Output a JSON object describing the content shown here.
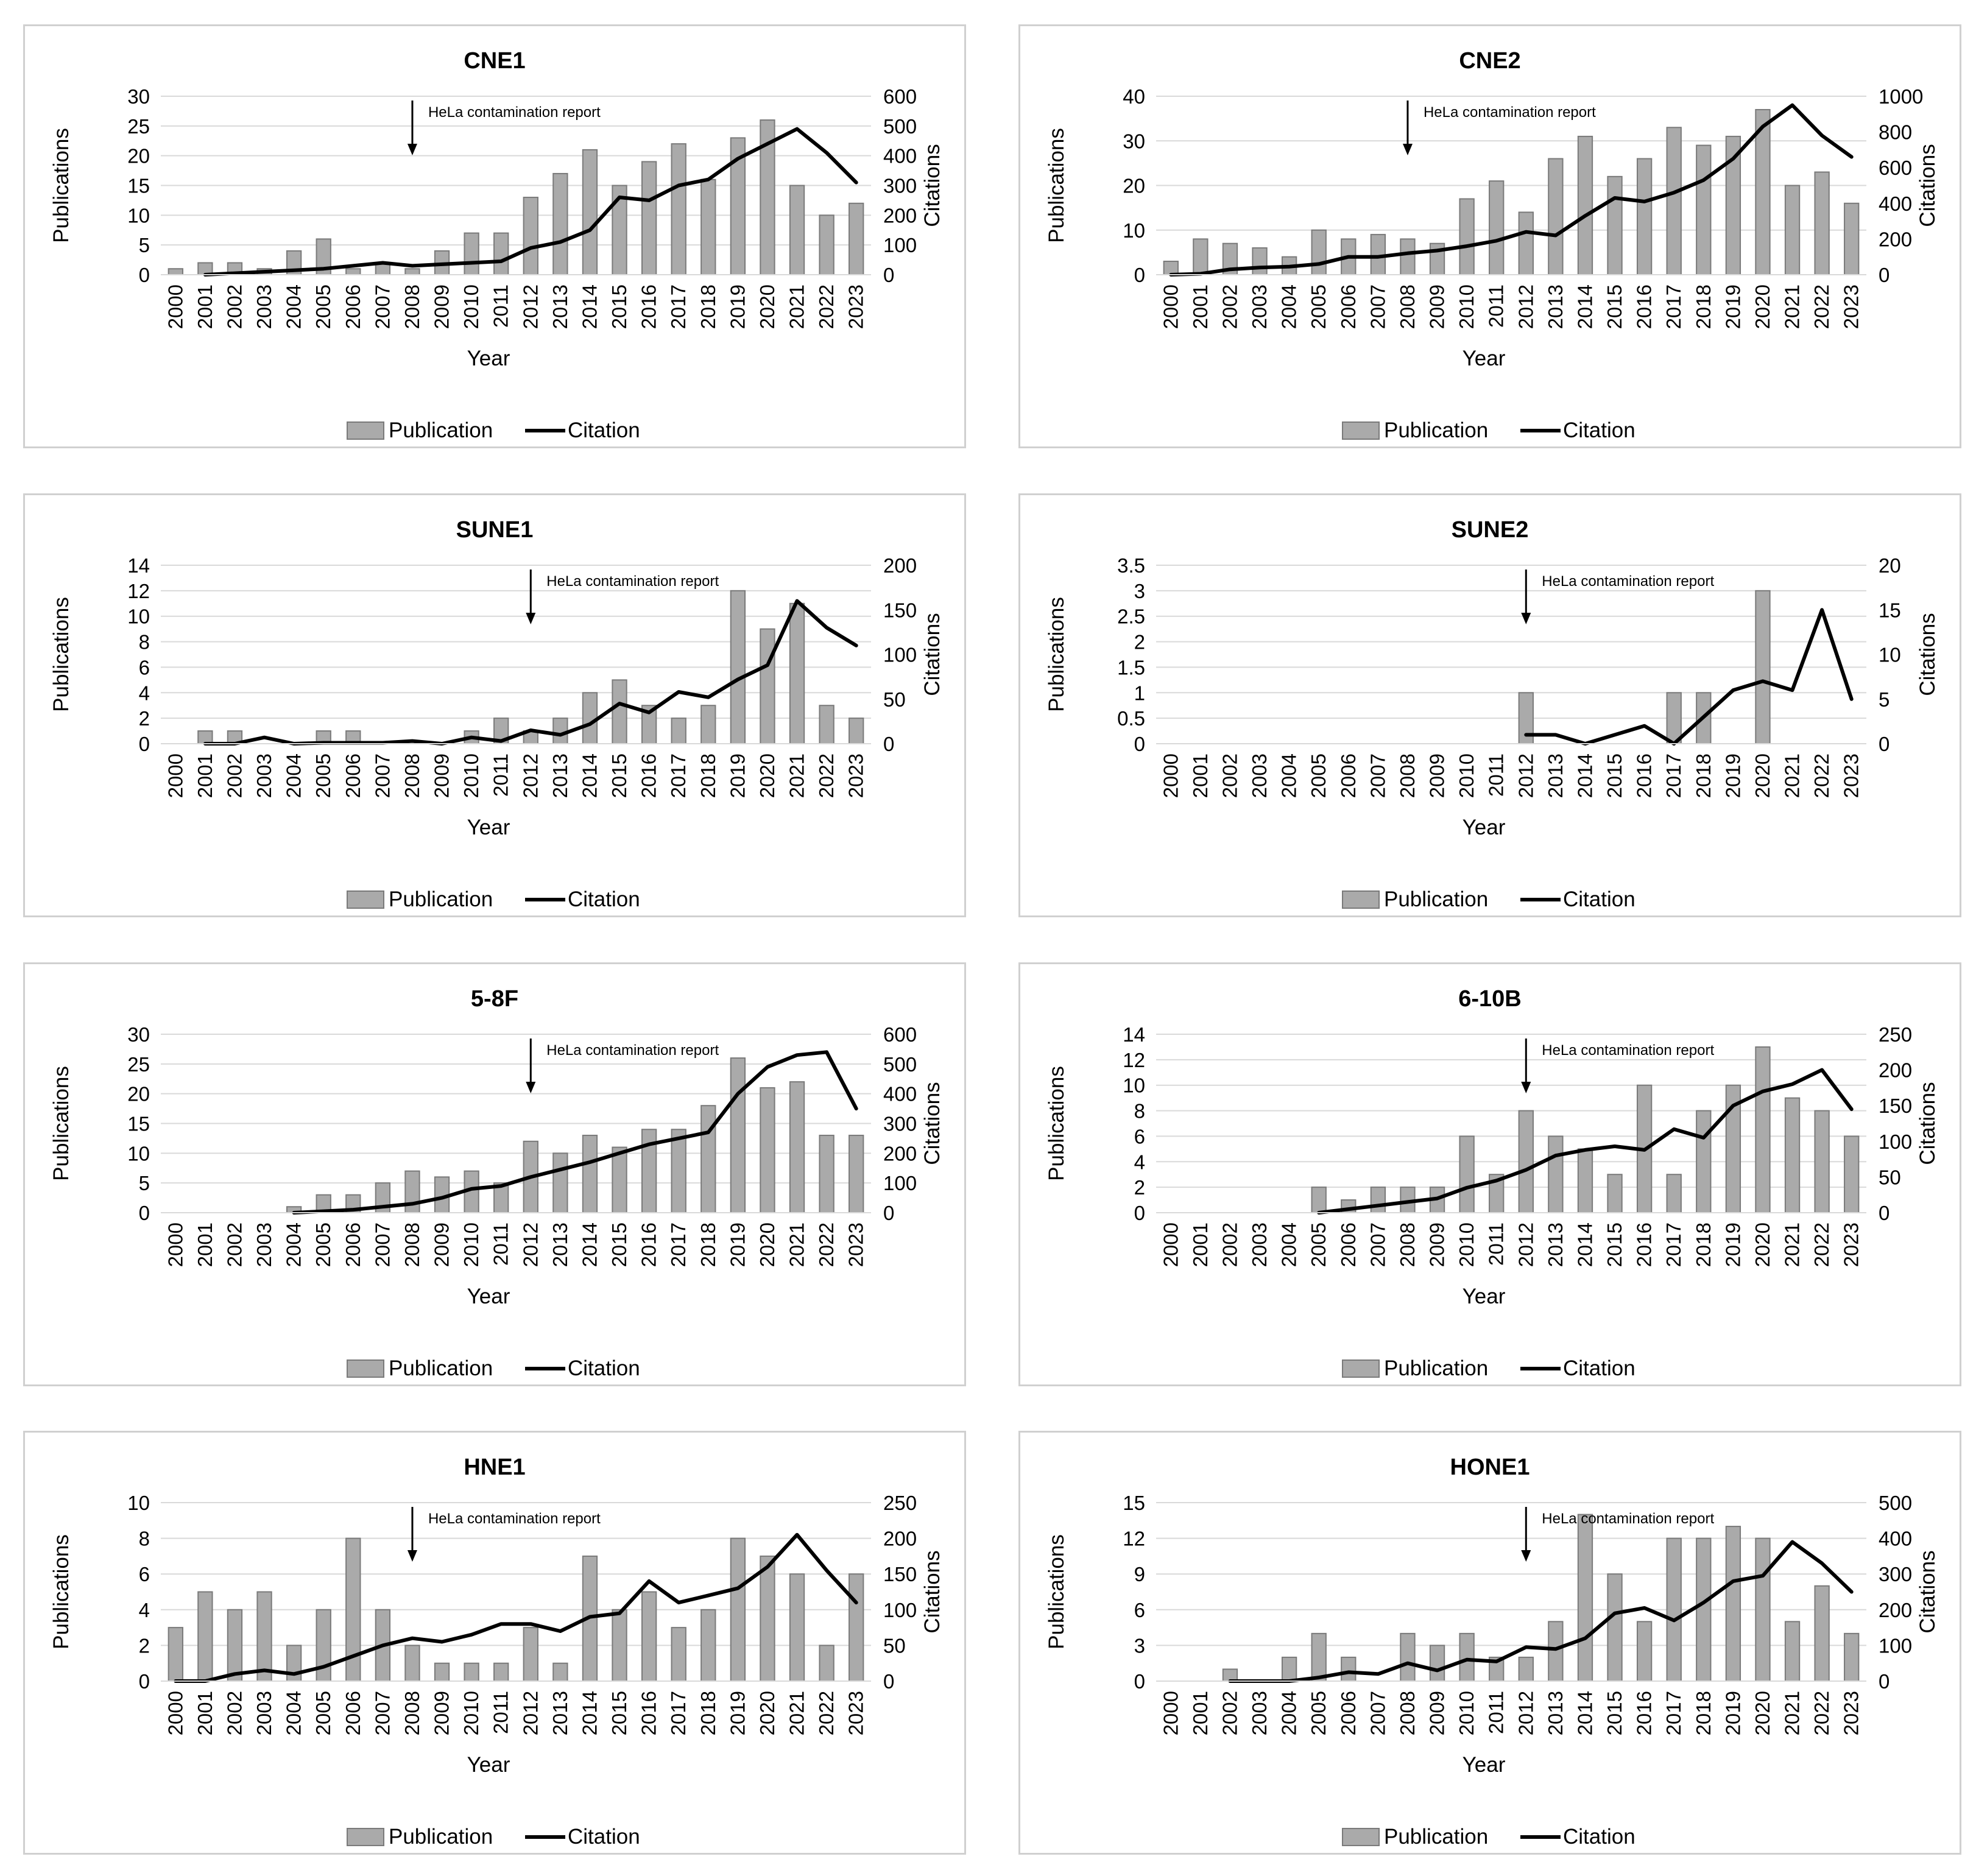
{
  "figure": {
    "x_axis_label": "Year",
    "left_axis_label": "Publications",
    "right_axis_label": "Citations",
    "annotation": "HeLa contamination report",
    "legend": {
      "bar": "Publication",
      "line": "Citation"
    },
    "colors": {
      "bar_fill": "#aaaaaa",
      "bar_stroke": "#7a7a7a",
      "line": "#000000",
      "grid": "#d9d9d9",
      "border": "#d0d0d0"
    }
  },
  "chart_data": [
    {
      "type": "bar+line",
      "title": "CNE1",
      "categories": [
        "2000",
        "2001",
        "2002",
        "2003",
        "2004",
        "2005",
        "2006",
        "2007",
        "2008",
        "2009",
        "2010",
        "2011",
        "2012",
        "2013",
        "2014",
        "2015",
        "2016",
        "2017",
        "2018",
        "2019",
        "2020",
        "2021",
        "2022",
        "2023"
      ],
      "series": [
        {
          "name": "Publication",
          "axis": "left",
          "values": [
            1,
            2,
            2,
            1,
            4,
            6,
            1,
            2,
            1,
            4,
            7,
            7,
            13,
            17,
            21,
            15,
            19,
            22,
            16,
            23,
            26,
            15,
            10,
            12
          ]
        },
        {
          "name": "Citation",
          "axis": "right",
          "values": [
            null,
            0,
            5,
            10,
            15,
            20,
            30,
            40,
            30,
            35,
            40,
            45,
            90,
            110,
            150,
            260,
            250,
            300,
            320,
            390,
            440,
            490,
            410,
            310
          ]
        }
      ],
      "left_ylim": [
        0,
        30
      ],
      "left_ticks": [
        "0",
        "5",
        "10",
        "15",
        "20",
        "25",
        "30"
      ],
      "right_ylim": [
        0,
        600
      ],
      "right_ticks": [
        "0",
        "100",
        "200",
        "300",
        "400",
        "500",
        "600"
      ],
      "annotation_year": "2008"
    },
    {
      "type": "bar+line",
      "title": "CNE2",
      "categories": [
        "2000",
        "2001",
        "2002",
        "2003",
        "2004",
        "2005",
        "2006",
        "2007",
        "2008",
        "2009",
        "2010",
        "2011",
        "2012",
        "2013",
        "2014",
        "2015",
        "2016",
        "2017",
        "2018",
        "2019",
        "2020",
        "2021",
        "2022",
        "2023"
      ],
      "series": [
        {
          "name": "Publication",
          "axis": "left",
          "values": [
            3,
            8,
            7,
            6,
            4,
            10,
            8,
            9,
            8,
            7,
            17,
            21,
            14,
            26,
            31,
            22,
            26,
            33,
            29,
            31,
            37,
            20,
            23,
            16
          ]
        },
        {
          "name": "Citation",
          "axis": "right",
          "values": [
            0,
            5,
            30,
            40,
            45,
            60,
            100,
            100,
            120,
            135,
            160,
            190,
            240,
            220,
            330,
            430,
            410,
            460,
            530,
            650,
            830,
            950,
            780,
            660
          ]
        }
      ],
      "left_ylim": [
        0,
        40
      ],
      "left_ticks": [
        "0",
        "10",
        "20",
        "30",
        "40"
      ],
      "right_ylim": [
        0,
        1000
      ],
      "right_ticks": [
        "0",
        "200",
        "400",
        "600",
        "800",
        "1000"
      ],
      "annotation_year": "2008"
    },
    {
      "type": "bar+line",
      "title": "SUNE1",
      "categories": [
        "2000",
        "2001",
        "2002",
        "2003",
        "2004",
        "2005",
        "2006",
        "2007",
        "2008",
        "2009",
        "2010",
        "2011",
        "2012",
        "2013",
        "2014",
        "2015",
        "2016",
        "2017",
        "2018",
        "2019",
        "2020",
        "2021",
        "2022",
        "2023"
      ],
      "series": [
        {
          "name": "Publication",
          "axis": "left",
          "values": [
            0,
            1,
            1,
            0,
            0,
            1,
            1,
            0,
            0,
            0,
            1,
            2,
            1,
            2,
            4,
            5,
            3,
            2,
            3,
            12,
            9,
            11,
            3,
            2
          ]
        },
        {
          "name": "Citation",
          "axis": "right",
          "values": [
            null,
            0,
            0,
            7,
            0,
            1,
            1,
            1,
            3,
            0,
            7,
            3,
            15,
            10,
            22,
            45,
            35,
            58,
            52,
            72,
            88,
            160,
            130,
            110
          ]
        }
      ],
      "left_ylim": [
        0,
        14
      ],
      "left_ticks": [
        "0",
        "2",
        "4",
        "6",
        "8",
        "10",
        "12",
        "14"
      ],
      "right_ylim": [
        0,
        200
      ],
      "right_ticks": [
        "0",
        "50",
        "100",
        "150",
        "200"
      ],
      "annotation_year": "2012"
    },
    {
      "type": "bar+line",
      "title": "SUNE2",
      "categories": [
        "2000",
        "2001",
        "2002",
        "2003",
        "2004",
        "2005",
        "2006",
        "2007",
        "2008",
        "2009",
        "2010",
        "2011",
        "2012",
        "2013",
        "2014",
        "2015",
        "2016",
        "2017",
        "2018",
        "2019",
        "2020",
        "2021",
        "2022",
        "2023"
      ],
      "series": [
        {
          "name": "Publication",
          "axis": "left",
          "values": [
            0,
            0,
            0,
            0,
            0,
            0,
            0,
            0,
            0,
            0,
            0,
            0,
            1,
            0,
            0,
            0,
            0,
            1,
            1,
            0,
            3,
            0,
            0,
            0
          ]
        },
        {
          "name": "Citation",
          "axis": "right",
          "values": [
            null,
            null,
            null,
            null,
            null,
            null,
            null,
            null,
            null,
            null,
            null,
            null,
            1,
            1,
            0,
            1,
            2,
            0,
            3,
            6,
            7,
            6,
            15,
            5
          ]
        }
      ],
      "left_ylim": [
        0,
        3.5
      ],
      "left_ticks": [
        "0",
        "0.5",
        "1",
        "1.5",
        "2",
        "2.5",
        "3",
        "3.5"
      ],
      "right_ylim": [
        0,
        20
      ],
      "right_ticks": [
        "0",
        "5",
        "10",
        "15",
        "20"
      ],
      "annotation_year": "2012"
    },
    {
      "type": "bar+line",
      "title": "5-8F",
      "categories": [
        "2000",
        "2001",
        "2002",
        "2003",
        "2004",
        "2005",
        "2006",
        "2007",
        "2008",
        "2009",
        "2010",
        "2011",
        "2012",
        "2013",
        "2014",
        "2015",
        "2016",
        "2017",
        "2018",
        "2019",
        "2020",
        "2021",
        "2022",
        "2023"
      ],
      "series": [
        {
          "name": "Publication",
          "axis": "left",
          "values": [
            0,
            0,
            0,
            0,
            1,
            3,
            3,
            5,
            7,
            6,
            7,
            5,
            12,
            10,
            13,
            11,
            14,
            14,
            18,
            26,
            21,
            22,
            13,
            13
          ]
        },
        {
          "name": "Citation",
          "axis": "right",
          "values": [
            null,
            null,
            null,
            null,
            0,
            5,
            10,
            20,
            30,
            50,
            80,
            90,
            120,
            145,
            170,
            200,
            230,
            250,
            270,
            400,
            490,
            530,
            540,
            350
          ]
        }
      ],
      "left_ylim": [
        0,
        30
      ],
      "left_ticks": [
        "0",
        "5",
        "10",
        "15",
        "20",
        "25",
        "30"
      ],
      "right_ylim": [
        0,
        600
      ],
      "right_ticks": [
        "0",
        "100",
        "200",
        "300",
        "400",
        "500",
        "600"
      ],
      "annotation_year": "2012"
    },
    {
      "type": "bar+line",
      "title": "6-10B",
      "categories": [
        "2000",
        "2001",
        "2002",
        "2003",
        "2004",
        "2005",
        "2006",
        "2007",
        "2008",
        "2009",
        "2010",
        "2011",
        "2012",
        "2013",
        "2014",
        "2015",
        "2016",
        "2017",
        "2018",
        "2019",
        "2020",
        "2021",
        "2022",
        "2023"
      ],
      "series": [
        {
          "name": "Publication",
          "axis": "left",
          "values": [
            0,
            0,
            0,
            0,
            0,
            2,
            1,
            2,
            2,
            2,
            6,
            3,
            8,
            6,
            5,
            3,
            10,
            3,
            8,
            10,
            13,
            9,
            8,
            6
          ]
        },
        {
          "name": "Citation",
          "axis": "right",
          "values": [
            null,
            null,
            null,
            null,
            null,
            0,
            5,
            10,
            15,
            20,
            35,
            45,
            60,
            80,
            88,
            93,
            88,
            117,
            105,
            150,
            170,
            180,
            200,
            145
          ]
        }
      ],
      "left_ylim": [
        0,
        14
      ],
      "left_ticks": [
        "0",
        "2",
        "4",
        "6",
        "8",
        "10",
        "12",
        "14"
      ],
      "right_ylim": [
        0,
        250
      ],
      "right_ticks": [
        "0",
        "50",
        "100",
        "150",
        "200",
        "250"
      ],
      "annotation_year": "2012"
    },
    {
      "type": "bar+line",
      "title": "HNE1",
      "categories": [
        "2000",
        "2001",
        "2002",
        "2003",
        "2004",
        "2005",
        "2006",
        "2007",
        "2008",
        "2009",
        "2010",
        "2011",
        "2012",
        "2013",
        "2014",
        "2015",
        "2016",
        "2017",
        "2018",
        "2019",
        "2020",
        "2021",
        "2022",
        "2023"
      ],
      "series": [
        {
          "name": "Publication",
          "axis": "left",
          "values": [
            3,
            5,
            4,
            5,
            2,
            4,
            8,
            4,
            2,
            1,
            1,
            1,
            3,
            1,
            7,
            4,
            5,
            3,
            4,
            8,
            7,
            6,
            2,
            6
          ]
        },
        {
          "name": "Citation",
          "axis": "right",
          "values": [
            0,
            0,
            10,
            15,
            10,
            20,
            35,
            50,
            60,
            55,
            65,
            80,
            80,
            70,
            90,
            95,
            140,
            110,
            120,
            130,
            160,
            205,
            155,
            110
          ]
        }
      ],
      "left_ylim": [
        0,
        10
      ],
      "left_ticks": [
        "0",
        "2",
        "4",
        "6",
        "8",
        "10"
      ],
      "right_ylim": [
        0,
        250
      ],
      "right_ticks": [
        "0",
        "50",
        "100",
        "150",
        "200",
        "250"
      ],
      "annotation_year": "2008"
    },
    {
      "type": "bar+line",
      "title": "HONE1",
      "categories": [
        "2000",
        "2001",
        "2002",
        "2003",
        "2004",
        "2005",
        "2006",
        "2007",
        "2008",
        "2009",
        "2010",
        "2011",
        "2012",
        "2013",
        "2014",
        "2015",
        "2016",
        "2017",
        "2018",
        "2019",
        "2020",
        "2021",
        "2022",
        "2023"
      ],
      "series": [
        {
          "name": "Publication",
          "axis": "left",
          "values": [
            0,
            0,
            1,
            0,
            2,
            4,
            2,
            0,
            4,
            3,
            4,
            2,
            2,
            5,
            14,
            9,
            5,
            12,
            12,
            13,
            12,
            5,
            8,
            4
          ]
        },
        {
          "name": "Citation",
          "axis": "right",
          "values": [
            null,
            null,
            0,
            0,
            0,
            10,
            25,
            20,
            50,
            30,
            60,
            55,
            95,
            90,
            120,
            190,
            205,
            170,
            220,
            280,
            295,
            390,
            330,
            250
          ]
        }
      ],
      "left_ylim": [
        0,
        15
      ],
      "left_ticks": [
        "0",
        "3",
        "6",
        "9",
        "12",
        "15"
      ],
      "right_ylim": [
        0,
        500
      ],
      "right_ticks": [
        "0",
        "100",
        "200",
        "300",
        "400",
        "500"
      ],
      "annotation_year": "2012"
    }
  ]
}
